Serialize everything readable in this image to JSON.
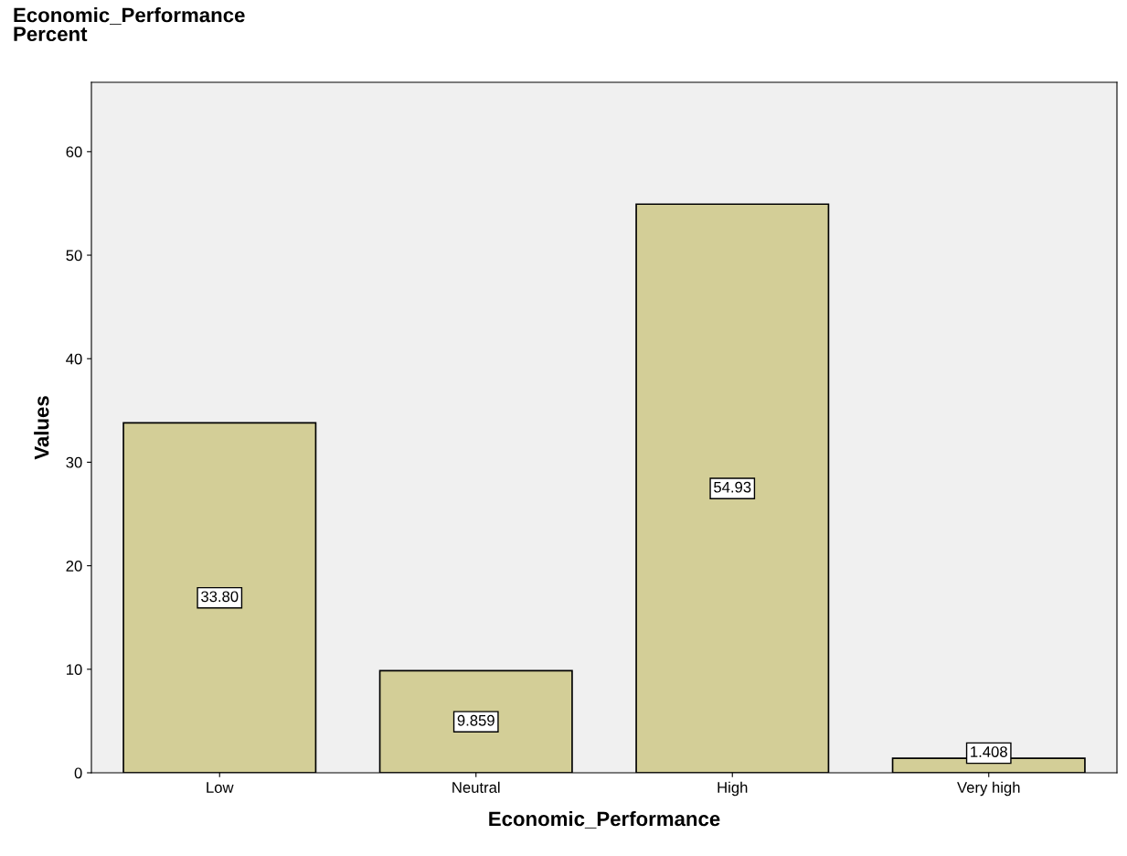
{
  "chart_data": {
    "type": "bar",
    "title": "Economic_Performance\nPercent",
    "xlabel": "Economic_Performance",
    "ylabel": "Values",
    "categories": [
      "Low",
      "Neutral",
      "High",
      "Very high"
    ],
    "values": [
      33.8,
      9.859,
      54.93,
      1.408
    ],
    "value_labels": [
      "33.80",
      "9.859",
      "54.93",
      "1.408"
    ],
    "color": "#d3ce97",
    "ylim": [
      0,
      66.7
    ],
    "yticks": [
      0,
      10,
      20,
      30,
      40,
      50,
      60
    ],
    "grid": false,
    "legend": false
  }
}
